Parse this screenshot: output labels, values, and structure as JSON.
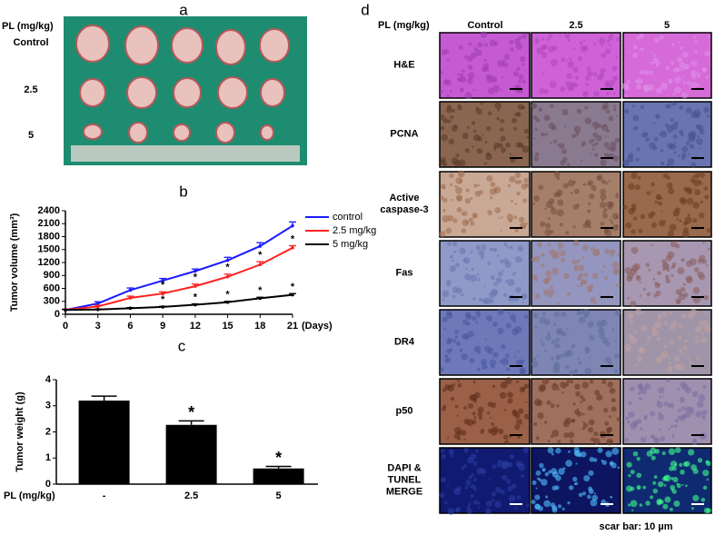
{
  "panel_a": {
    "label": "a",
    "axis_label": "PL (mg/kg)",
    "rows": [
      "Control",
      "2.5",
      "5"
    ]
  },
  "panel_d": {
    "label": "d",
    "axis_label": "PL (mg/kg)",
    "columns": [
      "Control",
      "2.5",
      "5"
    ],
    "rows": [
      "H&E",
      "PCNA",
      "Active caspase-3",
      "Fas",
      "DR4",
      "p50",
      "DAPI & TUNEL MERGE"
    ],
    "caption": "scar bar: 10 µm"
  },
  "chart_data": [
    {
      "type": "line",
      "panel_label": "b",
      "y_label": "Tumor volume (mm³)",
      "x_label": "(Days)",
      "x": [
        0,
        3,
        6,
        9,
        12,
        15,
        18,
        21
      ],
      "xlim": [
        0,
        21
      ],
      "xticks": [
        0,
        3,
        6,
        9,
        12,
        15,
        18,
        21
      ],
      "ylim": [
        0,
        2400
      ],
      "yticks": [
        0,
        300,
        600,
        900,
        1200,
        1500,
        1800,
        2100,
        2400
      ],
      "series": [
        {
          "name": "control",
          "color": "#1a1aff",
          "values": [
            100,
            250,
            560,
            780,
            1000,
            1250,
            1580,
            2050
          ],
          "errors": [
            20,
            40,
            50,
            50,
            50,
            70,
            80,
            90
          ]
        },
        {
          "name": "2.5 mg/kg",
          "color": "#ff2020",
          "values": [
            100,
            180,
            380,
            480,
            650,
            870,
            1150,
            1540
          ],
          "errors": [
            20,
            30,
            40,
            40,
            50,
            60,
            70,
            50
          ],
          "annotations": [
            null,
            null,
            null,
            "*",
            "*",
            "*",
            "*",
            "*"
          ]
        },
        {
          "name": "5 mg/kg",
          "color": "#000000",
          "values": [
            100,
            110,
            140,
            170,
            220,
            280,
            370,
            450
          ],
          "errors": [
            10,
            10,
            15,
            15,
            20,
            20,
            25,
            30
          ],
          "annotations": [
            null,
            null,
            null,
            "*",
            "*",
            "*",
            "*",
            "*"
          ]
        }
      ]
    },
    {
      "type": "bar",
      "panel_label": "c",
      "y_label": "Tumor weight (g)",
      "x_label": "PL (mg/kg)",
      "categories": [
        "-",
        "2.5",
        "5"
      ],
      "values": [
        3.2,
        2.27,
        0.6
      ],
      "errors": [
        0.17,
        0.15,
        0.08
      ],
      "annotations": [
        null,
        "*",
        "*"
      ],
      "color": "#000000",
      "ylim": [
        0,
        4
      ],
      "yticks": [
        0,
        1,
        2,
        3,
        4
      ]
    }
  ]
}
